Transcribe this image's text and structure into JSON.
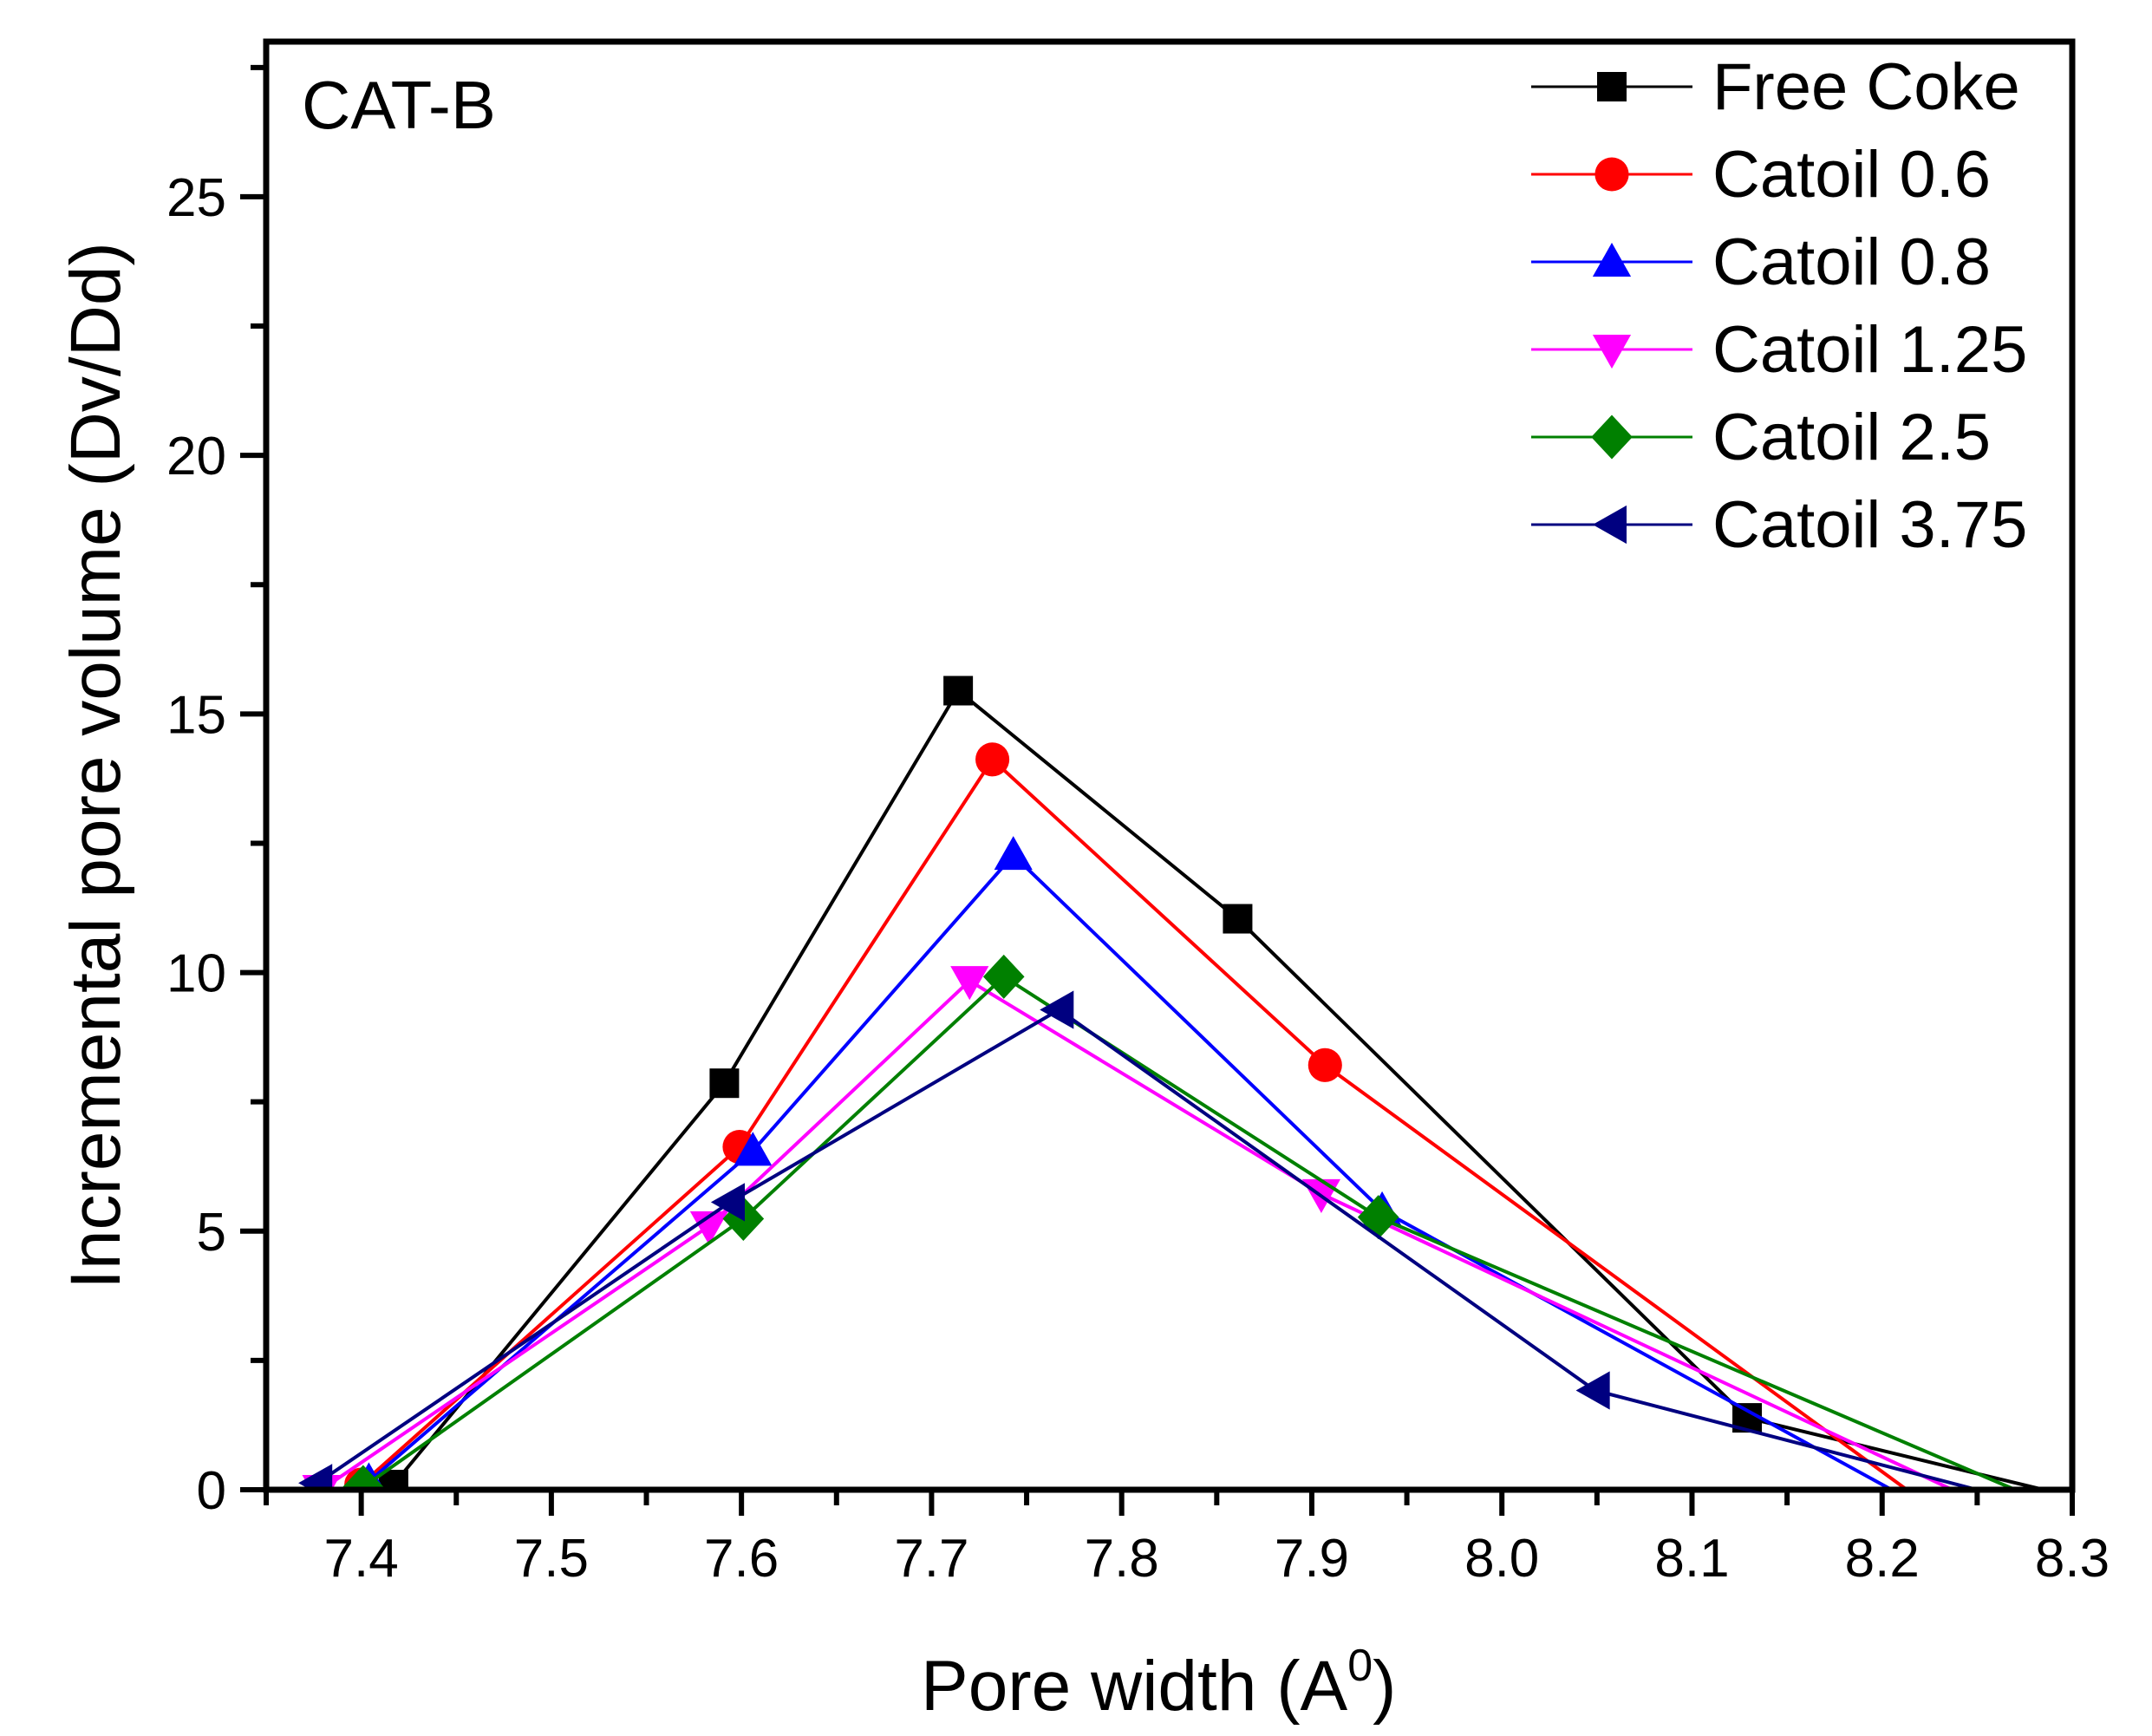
{
  "chart_data": {
    "type": "line",
    "panel_label": "CAT-B",
    "xlabel": "Pore width (A",
    "xlabel_sup": "0",
    "xlabel_end": ")",
    "ylabel": "Incremental pore volume (Dv/Dd)",
    "xlim": [
      7.35,
      8.3
    ],
    "ylim": [
      0,
      28
    ],
    "x_ticks": [
      7.4,
      7.5,
      7.6,
      7.7,
      7.8,
      7.9,
      8.0,
      8.1,
      8.2,
      8.3
    ],
    "x_tick_labels": [
      "7.4",
      "7.5",
      "7.6",
      "7.7",
      "7.8",
      "7.9",
      "8.0",
      "8.1",
      "8.2",
      "8.3"
    ],
    "y_ticks": [
      0,
      5,
      10,
      15,
      20,
      25
    ],
    "y_tick_labels": [
      "0",
      "5",
      "10",
      "15",
      "20",
      "25"
    ],
    "grid": false,
    "legend_position": "top-right",
    "series": [
      {
        "name": "Free Coke",
        "color": "#000000",
        "marker": "square",
        "x": [
          7.417,
          7.591,
          7.714,
          7.861,
          8.129,
          8.285
        ],
        "y": [
          0.1,
          7.86,
          15.45,
          11.04,
          1.39,
          0
        ],
        "markers_shown": 5
      },
      {
        "name": "Catoil 0.6",
        "color": "#ff0000",
        "marker": "circle",
        "x": [
          7.4,
          7.599,
          7.732,
          7.907,
          8.213
        ],
        "y": [
          0.1,
          6.63,
          14.12,
          8.21,
          0
        ],
        "markers_shown": 4
      },
      {
        "name": "Catoil 0.8",
        "color": "#0000ff",
        "marker": "triangle-up",
        "x": [
          7.404,
          7.606,
          7.743,
          7.937,
          8.205
        ],
        "y": [
          0.16,
          6.55,
          12.27,
          5.4,
          0
        ],
        "markers_shown": 4
      },
      {
        "name": "Catoil 1.25",
        "color": "#ff00ff",
        "marker": "triangle-down",
        "x": [
          7.379,
          7.583,
          7.72,
          7.905,
          8.237
        ],
        "y": [
          0.0,
          5.1,
          9.84,
          5.72,
          0
        ],
        "markers_shown": 4
      },
      {
        "name": "Catoil 2.5",
        "color": "#008000",
        "marker": "diamond",
        "x": [
          7.401,
          7.601,
          7.738,
          7.935,
          8.27
        ],
        "y": [
          0.05,
          5.24,
          9.92,
          5.27,
          0
        ],
        "markers_shown": 4
      },
      {
        "name": "Catoil 3.75",
        "color": "#000080",
        "marker": "triangle-left",
        "x": [
          7.377,
          7.594,
          7.767,
          8.049,
          8.25
        ],
        "y": [
          0.13,
          5.56,
          9.28,
          1.92,
          0
        ],
        "markers_shown": 4
      }
    ]
  }
}
